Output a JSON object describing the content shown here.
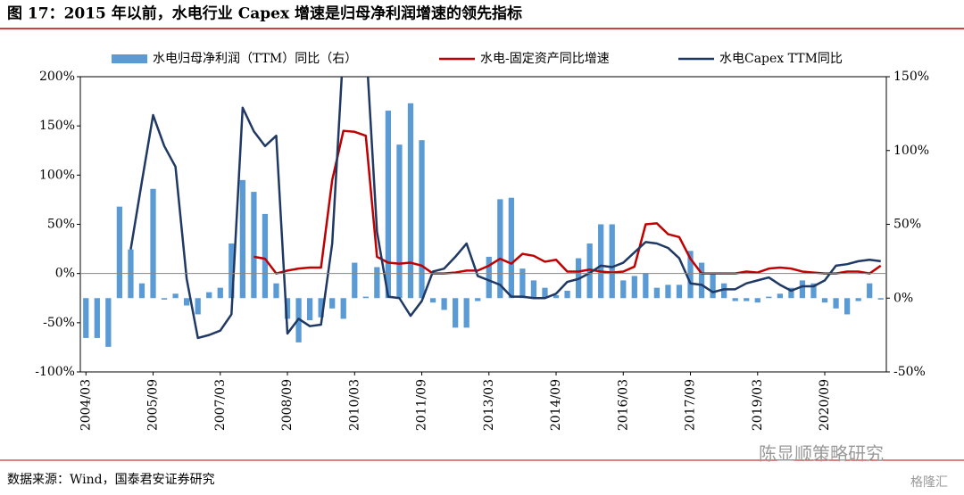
{
  "chart_data": {
    "type": "bar-line",
    "title": "图 17：2015 年以前，水电行业 Capex 增速是归母净利润增速的领先指标",
    "source": "数据来源：Wind，国泰君安证券研究",
    "watermark": [
      "陈显顺策略研究",
      "格隆汇"
    ],
    "categories": [
      "2004/03",
      null,
      null,
      null,
      null,
      null,
      "2005/09",
      null,
      null,
      null,
      null,
      null,
      "2007/03",
      null,
      null,
      null,
      null,
      null,
      "2008/09",
      null,
      null,
      null,
      null,
      null,
      "2010/03",
      null,
      null,
      null,
      null,
      null,
      "2011/09",
      null,
      null,
      null,
      null,
      null,
      "2013/03",
      null,
      null,
      null,
      null,
      null,
      "2014/09",
      null,
      null,
      null,
      null,
      null,
      "2016/03",
      null,
      null,
      null,
      null,
      null,
      "2017/09",
      null,
      null,
      null,
      null,
      null,
      "2019/03",
      null,
      null,
      null,
      null,
      null,
      "2020/09",
      null,
      null,
      null,
      null,
      null
    ],
    "series": [
      {
        "name": "水电归母净利润（TTM）同比（右）",
        "kind": "bar",
        "axis": "y2",
        "color": "#5b9bd5",
        "values": [
          -27,
          -27,
          -33,
          62,
          33,
          10,
          74,
          -1,
          3,
          -5,
          -11,
          4,
          7,
          37,
          80,
          72,
          57,
          10,
          -14,
          -30,
          -15,
          -13,
          -7,
          -14,
          24,
          1,
          21,
          127,
          104,
          132,
          107,
          -3,
          -8,
          -20,
          -20,
          -2,
          28,
          67,
          68,
          20,
          12,
          7,
          2,
          5,
          27,
          37,
          50,
          50,
          12,
          15,
          17,
          7,
          9,
          9,
          32,
          24,
          17,
          10,
          -2,
          -2,
          -3,
          1,
          3,
          7,
          12,
          10,
          -3,
          -7,
          -11,
          -2,
          10,
          -1
        ]
      },
      {
        "name": "水电-固定资产同比增速",
        "kind": "line",
        "axis": "y",
        "color": "#c00000",
        "values": [
          null,
          null,
          null,
          null,
          null,
          null,
          null,
          null,
          null,
          null,
          null,
          null,
          null,
          null,
          null,
          17,
          15,
          0,
          3,
          5,
          6,
          6,
          95,
          145,
          144,
          140,
          17,
          11,
          10,
          11,
          8,
          0,
          0,
          1,
          3,
          3,
          8,
          15,
          10,
          20,
          18,
          12,
          14,
          2,
          2,
          4,
          2,
          1,
          2,
          7,
          50,
          51,
          40,
          37,
          15,
          0,
          0,
          0,
          0,
          2,
          1,
          5,
          6,
          5,
          2,
          1,
          0,
          0,
          2,
          2,
          0,
          8
        ]
      },
      {
        "name": "水电Capex TTM同比",
        "kind": "line",
        "axis": "y2",
        "color": "#1f3864",
        "values": [
          null,
          null,
          null,
          null,
          33,
          79,
          124,
          103,
          89,
          13,
          -27,
          -25,
          -22,
          -11,
          129,
          113,
          103,
          110,
          -24,
          -14,
          -19,
          -18,
          37,
          170,
          180,
          175,
          45,
          1,
          0,
          -12,
          -2,
          18,
          20,
          28,
          37,
          15,
          12,
          9,
          1,
          1,
          0,
          0,
          3,
          11,
          13,
          17,
          22,
          21,
          24,
          31,
          38,
          37,
          34,
          27,
          10,
          9,
          4,
          6,
          6,
          10,
          12,
          14,
          9,
          5,
          8,
          8,
          12,
          22,
          23,
          25,
          26,
          25
        ]
      }
    ],
    "ylim": [
      -100,
      200
    ],
    "yticks": [
      {
        "value": -100,
        "label": "-100%"
      },
      {
        "value": -50,
        "label": "-50%"
      },
      {
        "value": 0,
        "label": "0%"
      },
      {
        "value": 50,
        "label": "50%"
      },
      {
        "value": 100,
        "label": "100%"
      },
      {
        "value": 150,
        "label": "150%"
      },
      {
        "value": 200,
        "label": "200%"
      }
    ],
    "y2lim": [
      -50,
      150
    ],
    "y2ticks": [
      {
        "value": -50,
        "label": "-50%"
      },
      {
        "value": 0,
        "label": "0%"
      },
      {
        "value": 50,
        "label": "50%"
      },
      {
        "value": 100,
        "label": "100%"
      },
      {
        "value": 150,
        "label": "150%"
      }
    ],
    "legend": "top"
  }
}
